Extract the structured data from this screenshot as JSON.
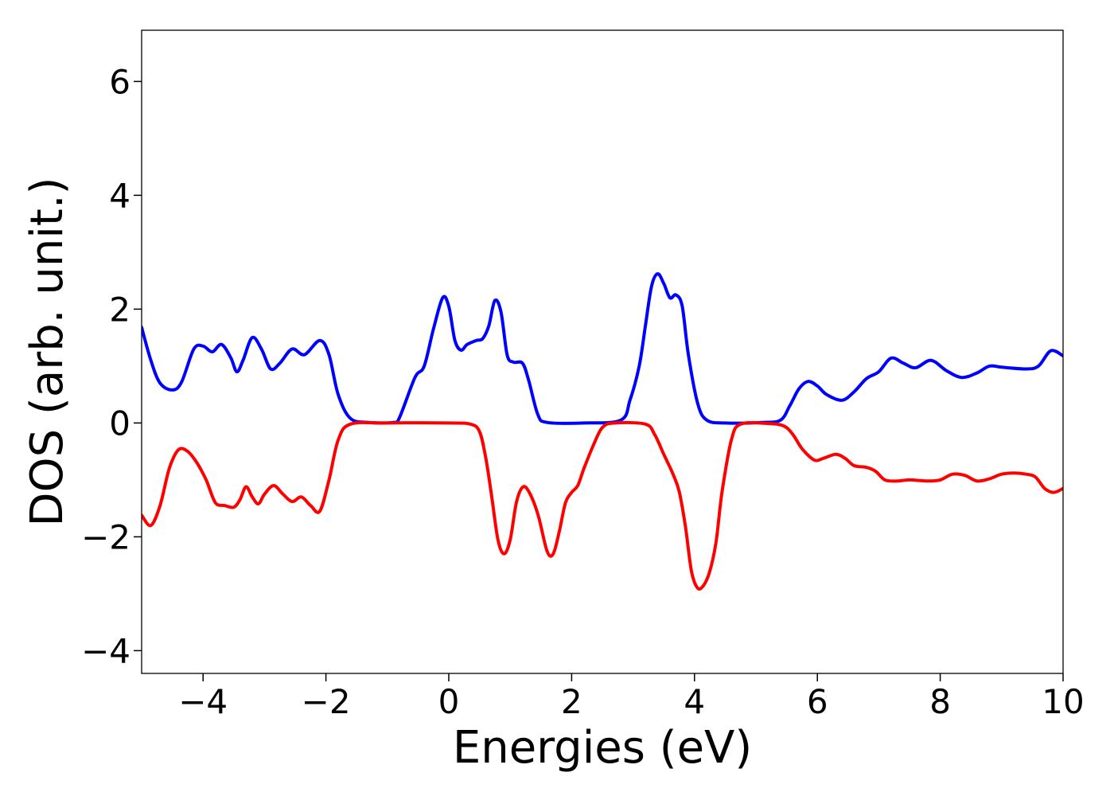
{
  "chart_data": {
    "type": "line",
    "title": "",
    "xlabel": "Energies (eV)",
    "ylabel": "DOS (arb. unit.)",
    "xlim": [
      -5,
      10
    ],
    "ylim": [
      -4.4,
      6.9
    ],
    "grid": false,
    "legend": null,
    "x_ticks": [
      -4,
      -2,
      0,
      2,
      4,
      6,
      8,
      10
    ],
    "x_tick_labels": [
      "−4",
      "−2",
      "0",
      "2",
      "4",
      "6",
      "8",
      "10"
    ],
    "y_ticks": [
      -4,
      -2,
      0,
      2,
      4,
      6
    ],
    "y_tick_labels": [
      "−4",
      "−2",
      "0",
      "2",
      "4",
      "6"
    ],
    "series": [
      {
        "color": "#0000ff",
        "points": [
          [
            -5.0,
            1.68
          ],
          [
            -4.85,
            1.1
          ],
          [
            -4.7,
            0.7
          ],
          [
            -4.5,
            0.58
          ],
          [
            -4.35,
            0.72
          ],
          [
            -4.15,
            1.3
          ],
          [
            -4.0,
            1.35
          ],
          [
            -3.85,
            1.25
          ],
          [
            -3.7,
            1.38
          ],
          [
            -3.55,
            1.15
          ],
          [
            -3.45,
            0.9
          ],
          [
            -3.35,
            1.1
          ],
          [
            -3.2,
            1.5
          ],
          [
            -3.05,
            1.3
          ],
          [
            -2.9,
            0.95
          ],
          [
            -2.75,
            1.05
          ],
          [
            -2.55,
            1.3
          ],
          [
            -2.35,
            1.2
          ],
          [
            -2.1,
            1.45
          ],
          [
            -1.95,
            1.2
          ],
          [
            -1.8,
            0.5
          ],
          [
            -1.6,
            0.08
          ],
          [
            -1.3,
            0.01
          ],
          [
            -0.9,
            0.01
          ],
          [
            -0.8,
            0.1
          ],
          [
            -0.55,
            0.8
          ],
          [
            -0.4,
            1.0
          ],
          [
            -0.25,
            1.65
          ],
          [
            -0.1,
            2.2
          ],
          [
            0.0,
            2.05
          ],
          [
            0.1,
            1.45
          ],
          [
            0.2,
            1.28
          ],
          [
            0.3,
            1.38
          ],
          [
            0.45,
            1.45
          ],
          [
            0.55,
            1.48
          ],
          [
            0.65,
            1.7
          ],
          [
            0.75,
            2.15
          ],
          [
            0.85,
            1.95
          ],
          [
            0.95,
            1.2
          ],
          [
            1.05,
            1.07
          ],
          [
            1.2,
            1.05
          ],
          [
            1.3,
            0.75
          ],
          [
            1.45,
            0.15
          ],
          [
            1.6,
            0.01
          ],
          [
            2.2,
            0.0
          ],
          [
            2.8,
            0.05
          ],
          [
            2.95,
            0.4
          ],
          [
            3.1,
            1.0
          ],
          [
            3.2,
            1.7
          ],
          [
            3.3,
            2.4
          ],
          [
            3.4,
            2.62
          ],
          [
            3.5,
            2.45
          ],
          [
            3.6,
            2.2
          ],
          [
            3.7,
            2.25
          ],
          [
            3.8,
            2.05
          ],
          [
            3.9,
            1.2
          ],
          [
            4.05,
            0.35
          ],
          [
            4.2,
            0.05
          ],
          [
            4.5,
            0.0
          ],
          [
            5.1,
            0.01
          ],
          [
            5.4,
            0.05
          ],
          [
            5.55,
            0.3
          ],
          [
            5.7,
            0.6
          ],
          [
            5.85,
            0.73
          ],
          [
            6.0,
            0.65
          ],
          [
            6.15,
            0.5
          ],
          [
            6.4,
            0.4
          ],
          [
            6.6,
            0.55
          ],
          [
            6.8,
            0.78
          ],
          [
            7.0,
            0.9
          ],
          [
            7.2,
            1.14
          ],
          [
            7.4,
            1.05
          ],
          [
            7.6,
            0.97
          ],
          [
            7.85,
            1.1
          ],
          [
            8.1,
            0.92
          ],
          [
            8.35,
            0.8
          ],
          [
            8.6,
            0.88
          ],
          [
            8.8,
            1.0
          ],
          [
            9.0,
            0.98
          ],
          [
            9.4,
            0.95
          ],
          [
            9.6,
            1.0
          ],
          [
            9.8,
            1.27
          ],
          [
            10.0,
            1.18
          ]
        ]
      },
      {
        "color": "#ff0000",
        "points": [
          [
            -5.0,
            -1.62
          ],
          [
            -4.85,
            -1.8
          ],
          [
            -4.7,
            -1.45
          ],
          [
            -4.55,
            -0.8
          ],
          [
            -4.4,
            -0.47
          ],
          [
            -4.25,
            -0.5
          ],
          [
            -4.1,
            -0.7
          ],
          [
            -3.95,
            -1.0
          ],
          [
            -3.8,
            -1.4
          ],
          [
            -3.65,
            -1.45
          ],
          [
            -3.5,
            -1.48
          ],
          [
            -3.4,
            -1.35
          ],
          [
            -3.3,
            -1.12
          ],
          [
            -3.2,
            -1.3
          ],
          [
            -3.1,
            -1.42
          ],
          [
            -3.0,
            -1.25
          ],
          [
            -2.85,
            -1.1
          ],
          [
            -2.7,
            -1.25
          ],
          [
            -2.55,
            -1.38
          ],
          [
            -2.4,
            -1.3
          ],
          [
            -2.25,
            -1.45
          ],
          [
            -2.1,
            -1.55
          ],
          [
            -1.95,
            -1.0
          ],
          [
            -1.8,
            -0.3
          ],
          [
            -1.6,
            -0.02
          ],
          [
            -1.0,
            0.0
          ],
          [
            0.0,
            0.0
          ],
          [
            0.35,
            -0.02
          ],
          [
            0.5,
            -0.15
          ],
          [
            0.6,
            -0.6
          ],
          [
            0.7,
            -1.3
          ],
          [
            0.8,
            -2.05
          ],
          [
            0.9,
            -2.3
          ],
          [
            1.0,
            -2.05
          ],
          [
            1.1,
            -1.4
          ],
          [
            1.2,
            -1.13
          ],
          [
            1.3,
            -1.2
          ],
          [
            1.45,
            -1.6
          ],
          [
            1.6,
            -2.25
          ],
          [
            1.7,
            -2.3
          ],
          [
            1.8,
            -1.9
          ],
          [
            1.9,
            -1.4
          ],
          [
            2.0,
            -1.22
          ],
          [
            2.1,
            -1.1
          ],
          [
            2.2,
            -0.8
          ],
          [
            2.35,
            -0.4
          ],
          [
            2.5,
            -0.08
          ],
          [
            2.7,
            0.0
          ],
          [
            3.2,
            -0.02
          ],
          [
            3.35,
            -0.2
          ],
          [
            3.5,
            -0.55
          ],
          [
            3.65,
            -0.9
          ],
          [
            3.75,
            -1.2
          ],
          [
            3.85,
            -1.8
          ],
          [
            3.95,
            -2.6
          ],
          [
            4.05,
            -2.9
          ],
          [
            4.15,
            -2.85
          ],
          [
            4.25,
            -2.6
          ],
          [
            4.35,
            -2.1
          ],
          [
            4.45,
            -1.2
          ],
          [
            4.6,
            -0.3
          ],
          [
            4.75,
            -0.02
          ],
          [
            5.2,
            -0.01
          ],
          [
            5.45,
            -0.05
          ],
          [
            5.6,
            -0.2
          ],
          [
            5.75,
            -0.45
          ],
          [
            5.95,
            -0.65
          ],
          [
            6.1,
            -0.62
          ],
          [
            6.3,
            -0.55
          ],
          [
            6.45,
            -0.62
          ],
          [
            6.6,
            -0.75
          ],
          [
            6.8,
            -0.78
          ],
          [
            6.95,
            -0.85
          ],
          [
            7.1,
            -1.0
          ],
          [
            7.3,
            -1.02
          ],
          [
            7.5,
            -1.0
          ],
          [
            7.8,
            -1.02
          ],
          [
            8.0,
            -1.0
          ],
          [
            8.2,
            -0.9
          ],
          [
            8.4,
            -0.92
          ],
          [
            8.6,
            -1.02
          ],
          [
            8.8,
            -0.98
          ],
          [
            9.0,
            -0.9
          ],
          [
            9.2,
            -0.88
          ],
          [
            9.4,
            -0.9
          ],
          [
            9.55,
            -0.95
          ],
          [
            9.7,
            -1.15
          ],
          [
            9.85,
            -1.22
          ],
          [
            10.0,
            -1.15
          ]
        ]
      }
    ]
  }
}
